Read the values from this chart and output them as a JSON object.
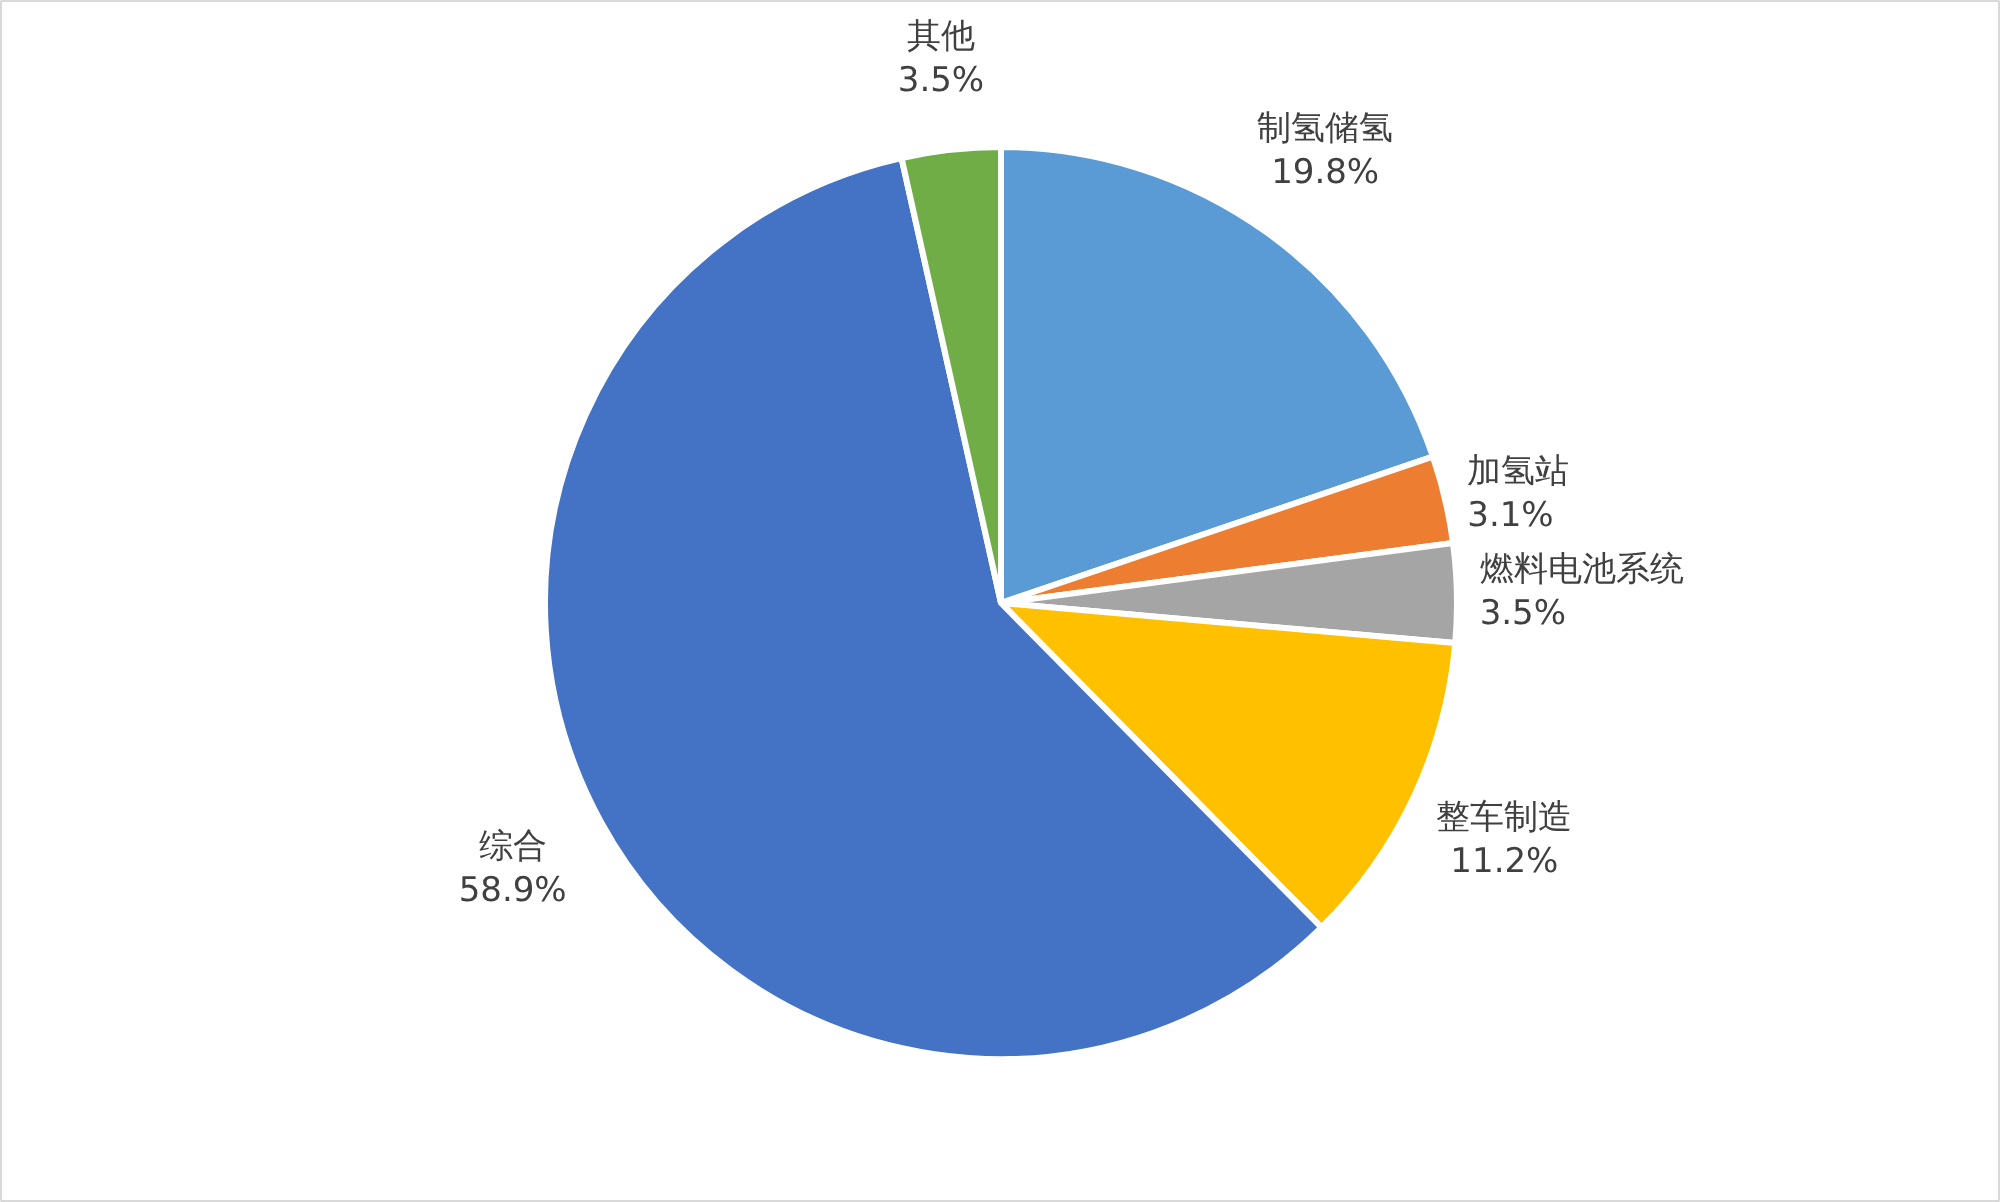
{
  "chart_data": {
    "type": "pie",
    "categories": [
      "制氢储氢",
      "加氢站",
      "燃料电池系统",
      "整车制造",
      "综合",
      "其他"
    ],
    "values": [
      19.8,
      3.1,
      3.5,
      11.2,
      58.9,
      3.5
    ],
    "value_labels": [
      "19.8%",
      "3.1%",
      "3.5%",
      "11.2%",
      "58.9%",
      "3.5%"
    ],
    "colors": [
      "#5b9bd5",
      "#ed7d31",
      "#a5a5a5",
      "#ffc000",
      "#4472c4",
      "#70ad47"
    ]
  }
}
